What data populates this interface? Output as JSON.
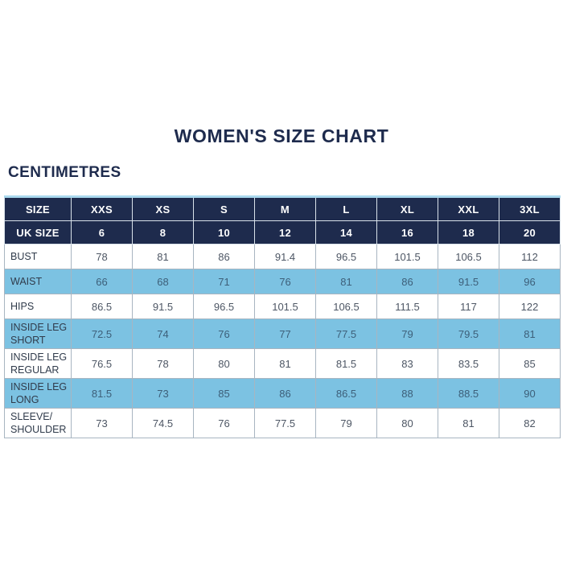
{
  "title": "WOMEN'S SIZE CHART",
  "unit_label": "CENTIMETRES",
  "colors": {
    "navy": "#1e2b4d",
    "light_blue": "#7cc2e2",
    "top_accent": "#aad9ee",
    "grid": "#a8b5c1",
    "header_grid": "#d9e2ea",
    "value_text": "#4d5664",
    "blue_value_text": "#3d5f79",
    "label_text": "#303b4b",
    "header_text": "#ffffff",
    "background": "#ffffff"
  },
  "chart_data": {
    "type": "table",
    "title": "WOMEN'S SIZE CHART",
    "unit": "CENTIMETRES",
    "size_header": {
      "label": "SIZE",
      "sizes": [
        "XXS",
        "XS",
        "S",
        "M",
        "L",
        "XL",
        "XXL",
        "3XL"
      ]
    },
    "uk_size_row": {
      "label": "UK SIZE",
      "values": [
        "6",
        "8",
        "10",
        "12",
        "14",
        "16",
        "18",
        "20"
      ]
    },
    "rows": [
      {
        "label": "BUST",
        "highlight": false,
        "values": [
          "78",
          "81",
          "86",
          "91.4",
          "96.5",
          "101.5",
          "106.5",
          "112"
        ]
      },
      {
        "label": "WAIST",
        "highlight": true,
        "values": [
          "66",
          "68",
          "71",
          "76",
          "81",
          "86",
          "91.5",
          "96"
        ]
      },
      {
        "label": "HIPS",
        "highlight": false,
        "values": [
          "86.5",
          "91.5",
          "96.5",
          "101.5",
          "106.5",
          "111.5",
          "117",
          "122"
        ]
      },
      {
        "label": "INSIDE LEG SHORT",
        "highlight": true,
        "values": [
          "72.5",
          "74",
          "76",
          "77",
          "77.5",
          "79",
          "79.5",
          "81"
        ]
      },
      {
        "label": "INSIDE LEG REGULAR",
        "highlight": false,
        "values": [
          "76.5",
          "78",
          "80",
          "81",
          "81.5",
          "83",
          "83.5",
          "85"
        ]
      },
      {
        "label": "INSIDE LEG LONG",
        "highlight": true,
        "values": [
          "81.5",
          "73",
          "85",
          "86",
          "86.5",
          "88",
          "88.5",
          "90"
        ]
      },
      {
        "label": "SLEEVE/ SHOULDER",
        "highlight": false,
        "values": [
          "73",
          "74.5",
          "76",
          "77.5",
          "79",
          "80",
          "81",
          "82"
        ]
      }
    ]
  }
}
